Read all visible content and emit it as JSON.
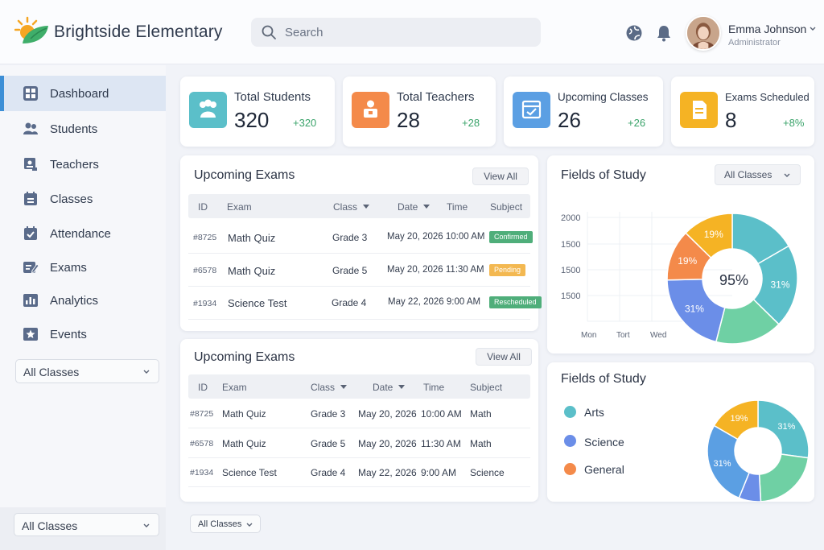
{
  "header": {
    "brand": "Brightside Elementary",
    "search_placeholder": "Search",
    "user_name": "Emma Johnson",
    "user_role": "Administrator"
  },
  "sidebar": {
    "items": [
      {
        "label": "Dashboard",
        "icon": "dashboard-icon",
        "active": true
      },
      {
        "label": "Students",
        "icon": "students-icon"
      },
      {
        "label": "Teachers",
        "icon": "teachers-icon"
      },
      {
        "label": "Classes",
        "icon": "classes-icon"
      },
      {
        "label": "Attendance",
        "icon": "attendance-icon"
      },
      {
        "label": "Exams",
        "icon": "exams-icon"
      },
      {
        "label": "Analytics",
        "icon": "analytics-icon"
      },
      {
        "label": "Events",
        "icon": "events-icon"
      }
    ],
    "filter": "All Classes",
    "bottom_filter": "All Classes"
  },
  "stats": [
    {
      "label": "Total Students",
      "value": "320",
      "delta": "+320",
      "color": "#5bbfc9"
    },
    {
      "label": "Total Teachers",
      "value": "28",
      "delta": "+28",
      "color": "#f48a4a"
    },
    {
      "label": "Upcoming Classes",
      "value": "26",
      "delta": "+26",
      "color": "#5b9fe3"
    },
    {
      "label": "Exams Scheduled",
      "value": "8",
      "delta": "+8%",
      "color": "#f5b324"
    }
  ],
  "exams_top": {
    "title": "Upcoming Exams",
    "view_all": "View All",
    "columns": [
      "ID",
      "Exam",
      "Class",
      "Date",
      "Time",
      "Subject"
    ],
    "rows": [
      {
        "id": "#8725",
        "exam": "Math Quiz",
        "class": "Grade 3",
        "datetime": "May 20, 2026 10:00 AM",
        "status": "Confirmed",
        "status_color": "#4fae7a"
      },
      {
        "id": "#6578",
        "exam": "Math Quiz",
        "class": "Grade 5",
        "datetime": "May 20, 2026 11:30 AM",
        "status": "Pending",
        "status_color": "#f3b851"
      },
      {
        "id": "#1934",
        "exam": "Science Test",
        "class": "Grade 4",
        "datetime": "May 22, 2026  9:00 AM",
        "status": "Rescheduled",
        "status_color": "#4fae7a"
      }
    ]
  },
  "exams_bottom": {
    "title": "Upcoming Exams",
    "view_all": "View All",
    "columns": [
      "ID",
      "Exam",
      "Class",
      "Date",
      "Time",
      "Subject"
    ],
    "rows": [
      {
        "id": "#8725",
        "exam": "Math Quiz",
        "class": "Grade 3",
        "date": "May 20, 2026",
        "time": "10:00 AM",
        "subject": "Math"
      },
      {
        "id": "#6578",
        "exam": "Math Quiz",
        "class": "Grade 5",
        "date": "May 20, 2026",
        "time": "11:30 AM",
        "subject": "Math"
      },
      {
        "id": "#1934",
        "exam": "Science Test",
        "class": "Grade 4",
        "date": "May 22, 2026",
        "time": "9:00 AM",
        "subject": "Science"
      }
    ],
    "filter": "All Classes"
  },
  "fields_top": {
    "title": "Fields of Study",
    "filter": "All Classes",
    "y_ticks": [
      "2000",
      "1500",
      "1500",
      "1500"
    ],
    "x_ticks": [
      "Mon",
      "Tort",
      "Wed"
    ],
    "center_label": "95%"
  },
  "fields_bottom": {
    "title": "Fields of Study",
    "legend": [
      {
        "label": "Arts",
        "color": "#5bbfc9"
      },
      {
        "label": "Science",
        "color": "#6b8ee8"
      },
      {
        "label": "General",
        "color": "#f48a4a"
      }
    ]
  },
  "chart_data": [
    {
      "type": "pie",
      "title": "Fields of Study",
      "center_label": "95%",
      "slices": [
        {
          "value": 25,
          "color": "#5bbfc9"
        },
        {
          "value": 31,
          "label": "31%",
          "color": "#5bbfc9"
        },
        {
          "value": 25,
          "color": "#6fd0a4"
        },
        {
          "value": 31,
          "label": "31%",
          "color": "#6b8ee8"
        },
        {
          "value": 19,
          "label": "19%",
          "color": "#f48a4a"
        },
        {
          "value": 19,
          "label": "19%",
          "color": "#f5b324"
        }
      ]
    },
    {
      "type": "pie",
      "title": "Fields of Study",
      "slices": [
        {
          "value": 31,
          "label": "31%",
          "color": "#5bbfc9"
        },
        {
          "value": 25,
          "color": "#6fd0a4"
        },
        {
          "value": 8,
          "color": "#6b8ee8"
        },
        {
          "value": 31,
          "label": "31%",
          "color": "#5b9fe3"
        },
        {
          "value": 19,
          "label": "19%",
          "color": "#f5b324"
        }
      ]
    }
  ]
}
